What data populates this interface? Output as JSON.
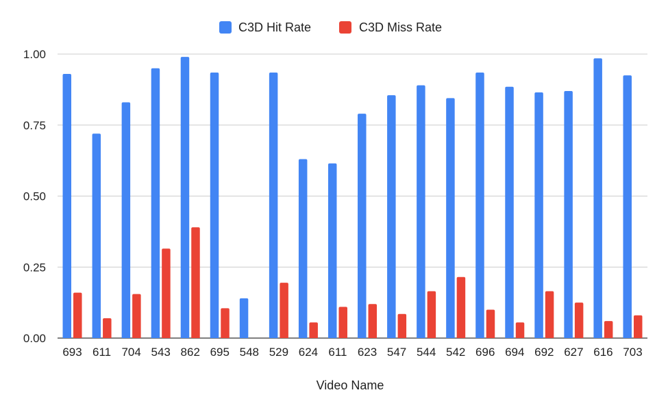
{
  "chart_data": {
    "type": "bar",
    "xlabel": "Video Name",
    "ylabel": "",
    "ylim": [
      0,
      1
    ],
    "yticks": [
      "0.00",
      "0.25",
      "0.50",
      "0.75",
      "1.00"
    ],
    "grid": true,
    "legend_position": "top-center",
    "categories": [
      "693",
      "611",
      "704",
      "543",
      "862",
      "695",
      "548",
      "529",
      "624",
      "611",
      "623",
      "547",
      "544",
      "542",
      "696",
      "694",
      "692",
      "627",
      "616",
      "703"
    ],
    "series": [
      {
        "name": "C3D Hit Rate",
        "color": "#4285f4",
        "values": [
          0.93,
          0.72,
          0.83,
          0.95,
          0.99,
          0.935,
          0.14,
          0.935,
          0.63,
          0.615,
          0.79,
          0.855,
          0.89,
          0.845,
          0.935,
          0.885,
          0.865,
          0.87,
          0.985,
          0.925
        ]
      },
      {
        "name": "C3D Miss Rate",
        "color": "#ea4335",
        "values": [
          0.16,
          0.07,
          0.155,
          0.315,
          0.39,
          0.105,
          0,
          0.195,
          0.055,
          0.11,
          0.12,
          0.085,
          0.165,
          0.215,
          0.1,
          0.055,
          0.165,
          0.125,
          0.06,
          0.08
        ]
      }
    ]
  }
}
